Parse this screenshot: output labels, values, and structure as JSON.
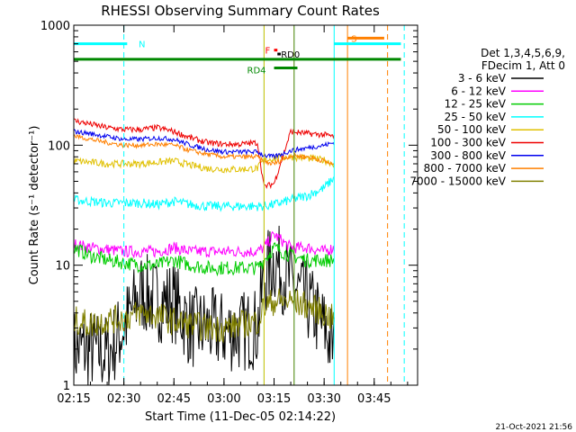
{
  "footer_timestamp": "21-Oct-2021 21:56",
  "chart_data": {
    "type": "line",
    "title": "RHESSI Observing Summary Count Rates",
    "xlabel": "Start Time (11-Dec-05 02:14:22)",
    "ylabel": "Count Rate (s⁻¹ detector⁻¹)",
    "y_scale": "log",
    "ylim": [
      1,
      1000
    ],
    "xlim": [
      "02:15",
      "03:58"
    ],
    "xticks": [
      "02:15",
      "02:30",
      "02:45",
      "03:00",
      "03:15",
      "03:30",
      "03:45"
    ],
    "yticks": [
      "1",
      "10",
      "100",
      "1000"
    ],
    "grid": false,
    "legend_position": "right",
    "legend_header": [
      "Det 1,3,4,5,6,9,",
      "FDecim 1, Att 0"
    ],
    "series": [
      {
        "name": "3 - 6 keV",
        "color": "#000000",
        "x": [
          "02:15",
          "02:20",
          "02:25",
          "02:30",
          "02:35",
          "02:40",
          "02:45",
          "02:50",
          "02:55",
          "03:00",
          "03:05",
          "03:10",
          "03:12",
          "03:15",
          "03:20",
          "03:25",
          "03:30",
          "03:33"
        ],
        "values": [
          2,
          2,
          1.8,
          3,
          6,
          5,
          5,
          3,
          3,
          2.8,
          2.8,
          3,
          8,
          11,
          7,
          5,
          3,
          2
        ]
      },
      {
        "name": "6 - 12 keV",
        "color": "#ff00ff",
        "x": [
          "02:15",
          "02:20",
          "02:25",
          "02:30",
          "02:35",
          "02:40",
          "02:45",
          "02:50",
          "02:55",
          "03:00",
          "03:05",
          "03:10",
          "03:12",
          "03:15",
          "03:20",
          "03:25",
          "03:30",
          "03:33"
        ],
        "values": [
          15,
          14,
          13.5,
          13,
          13,
          13,
          14,
          13,
          13,
          13,
          13,
          13,
          14,
          18,
          14,
          14,
          13,
          14
        ]
      },
      {
        "name": "12 - 25 keV",
        "color": "#00cc00",
        "x": [
          "02:15",
          "02:20",
          "02:25",
          "02:30",
          "02:35",
          "02:40",
          "02:45",
          "02:50",
          "02:55",
          "03:00",
          "03:05",
          "03:10",
          "03:12",
          "03:15",
          "03:20",
          "03:25",
          "03:30",
          "03:33"
        ],
        "values": [
          14,
          12,
          11,
          10.5,
          10,
          10,
          11,
          10,
          9.5,
          9.5,
          9.5,
          9.5,
          11,
          14,
          12,
          11,
          11,
          11
        ]
      },
      {
        "name": "25 - 50 keV",
        "color": "#00ffff",
        "x": [
          "02:15",
          "02:20",
          "02:25",
          "02:30",
          "02:35",
          "02:40",
          "02:45",
          "02:50",
          "02:55",
          "03:00",
          "03:05",
          "03:10",
          "03:12",
          "03:15",
          "03:20",
          "03:25",
          "03:30",
          "03:33"
        ],
        "values": [
          35,
          34,
          33,
          33,
          33,
          32,
          34,
          32,
          31,
          31,
          31,
          31,
          31,
          32,
          35,
          38,
          44,
          54
        ]
      },
      {
        "name": "50 - 100 keV",
        "color": "#e0c000",
        "x": [
          "02:15",
          "02:20",
          "02:25",
          "02:30",
          "02:35",
          "02:40",
          "02:45",
          "02:50",
          "02:55",
          "03:00",
          "03:05",
          "03:10",
          "03:12",
          "03:15",
          "03:20",
          "03:25",
          "03:30",
          "03:33"
        ],
        "values": [
          74,
          72,
          70,
          70,
          70,
          72,
          74,
          68,
          64,
          63,
          63,
          64,
          75,
          78,
          80,
          78,
          75,
          70
        ]
      },
      {
        "name": "100 - 300 keV",
        "color": "#ee0000",
        "x": [
          "02:15",
          "02:20",
          "02:25",
          "02:30",
          "02:35",
          "02:40",
          "02:45",
          "02:50",
          "02:55",
          "03:00",
          "03:05",
          "03:10",
          "03:12",
          "03:15",
          "03:20",
          "03:25",
          "03:30",
          "03:33"
        ],
        "values": [
          160,
          150,
          140,
          135,
          135,
          140,
          130,
          115,
          105,
          102,
          102,
          105,
          45,
          48,
          130,
          125,
          122,
          118
        ]
      },
      {
        "name": "300 - 800 keV",
        "color": "#0000ee",
        "x": [
          "02:15",
          "02:20",
          "02:25",
          "02:30",
          "02:35",
          "02:40",
          "02:45",
          "02:50",
          "02:55",
          "03:00",
          "03:05",
          "03:10",
          "03:12",
          "03:15",
          "03:20",
          "03:25",
          "03:30",
          "03:33"
        ],
        "values": [
          130,
          125,
          118,
          112,
          112,
          115,
          112,
          100,
          92,
          88,
          88,
          88,
          82,
          80,
          90,
          95,
          100,
          105
        ]
      },
      {
        "name": "800 - 7000 keV",
        "color": "#ff8000",
        "x": [
          "02:15",
          "02:20",
          "02:25",
          "02:30",
          "02:35",
          "02:40",
          "02:45",
          "02:50",
          "02:55",
          "03:00",
          "03:05",
          "03:10",
          "03:12",
          "03:15",
          "03:20",
          "03:25",
          "03:30",
          "03:33"
        ],
        "values": [
          120,
          112,
          105,
          100,
          100,
          102,
          100,
          90,
          84,
          80,
          80,
          80,
          72,
          70,
          82,
          80,
          74,
          68
        ]
      },
      {
        "name": "7000 - 15000 keV",
        "color": "#808000",
        "x": [
          "02:15",
          "02:20",
          "02:25",
          "02:30",
          "02:35",
          "02:40",
          "02:45",
          "02:50",
          "02:55",
          "03:00",
          "03:05",
          "03:10",
          "03:12",
          "03:15",
          "03:20",
          "03:25",
          "03:30",
          "03:33"
        ],
        "values": [
          3.5,
          3.2,
          3.5,
          3.6,
          4,
          3.8,
          3.4,
          3.2,
          3,
          3,
          3.2,
          3.4,
          4.5,
          5,
          5,
          4.6,
          4,
          3.5
        ]
      }
    ],
    "event_bars": [
      {
        "label": "N",
        "color": "#00ffff",
        "start": "02:15",
        "end": "02:31",
        "level": 700
      },
      {
        "label": "",
        "color": "#00ffff",
        "start": "03:33",
        "end": "03:53",
        "level": 700
      },
      {
        "label": "S",
        "color": "#ff8000",
        "start": "03:37",
        "end": "03:48",
        "level": 780
      },
      {
        "label": "",
        "color": "#008800",
        "start": "02:15",
        "end": "03:53",
        "level": 520
      },
      {
        "label": "RD4",
        "color": "#008800",
        "start": "03:15",
        "end": "03:22",
        "level": 440
      },
      {
        "label": "RD0",
        "color": "#000000",
        "start": "03:16",
        "end": "03:17",
        "level": 575
      },
      {
        "label": "F",
        "color": "#ff0000",
        "start": "03:15",
        "end": "03:16",
        "level": 620
      }
    ],
    "event_lines": [
      {
        "time": "02:30",
        "color": "#00ffff",
        "style": "dashed"
      },
      {
        "time": "03:12",
        "color": "#00ffff",
        "style": "solid"
      },
      {
        "time": "03:21",
        "color": "#00ffff",
        "style": "solid"
      },
      {
        "time": "03:33",
        "color": "#00ffff",
        "style": "solid"
      },
      {
        "time": "03:37",
        "color": "#ff8000",
        "style": "solid"
      },
      {
        "time": "03:49",
        "color": "#ff8000",
        "style": "dashed"
      },
      {
        "time": "03:54",
        "color": "#00ffff",
        "style": "dashed"
      },
      {
        "time": "03:12",
        "color": "#e0c000",
        "style": "solid"
      },
      {
        "time": "03:21",
        "color": "#808000",
        "style": "solid"
      }
    ]
  }
}
